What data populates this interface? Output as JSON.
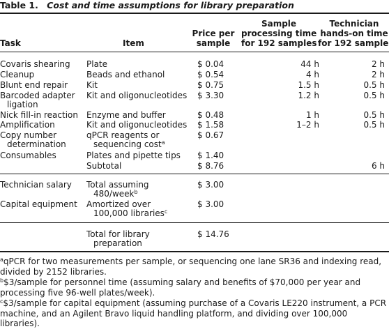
{
  "caption": {
    "label": "Table 1.",
    "text": "Cost and time assumptions for library preparation"
  },
  "headers": {
    "task": "Task",
    "item": "Item",
    "price": [
      "Price per",
      "sample"
    ],
    "processing": [
      "Sample",
      "processing time",
      "for 192 samples"
    ],
    "technician": [
      "Technician",
      "hands-on time",
      "for 192 samples"
    ]
  },
  "rows": [
    {
      "task": "Covaris shearing",
      "item": "Plate",
      "price": "$ 0.04",
      "processing": "44 h",
      "technician": "2 h"
    },
    {
      "task": "Cleanup",
      "item": "Beads and ethanol",
      "price": "$ 0.54",
      "processing": "4 h",
      "technician": "2 h"
    },
    {
      "task": "Blunt end repair",
      "item": "Kit",
      "price": "$ 0.75",
      "processing": "1.5 h",
      "technician": "0.5 h"
    },
    {
      "task": "Barcoded adapter",
      "task_cont": "ligation",
      "item": "Kit and oligonucleotides",
      "price": "$ 3.30",
      "processing": "1.2 h",
      "technician": "0.5 h"
    },
    {
      "task": "Nick fill-in reaction",
      "item": "Enzyme and buffer",
      "price": "$ 0.48",
      "processing": "1 h",
      "technician": "0.5 h"
    },
    {
      "task": "Amplification",
      "item": "Kit and oligonucleotides",
      "price": "$ 1.58",
      "processing": "1–2 h",
      "technician": "0.5 h"
    },
    {
      "task": "Copy number",
      "task_cont": "determination",
      "item": "qPCR reagents or",
      "item_cont": "sequencing cost",
      "item_sup": "a",
      "price": "$ 0.67"
    },
    {
      "task": "Consumables",
      "item": "Plates and pipette tips",
      "price": "$ 1.40"
    },
    {
      "item": "Subtotal",
      "price": "$ 8.76",
      "technician": "6 h"
    }
  ],
  "section2": [
    {
      "task": "Technician salary",
      "item": "Total assuming",
      "item_cont": "480/week",
      "item_sup": "b",
      "price": "$ 3.00"
    },
    {
      "task": "Capital equipment",
      "item": "Amortized over",
      "item_cont": "100,000 libraries",
      "item_sup": "c",
      "price": "$ 3.00"
    }
  ],
  "total": {
    "item": "Total for library",
    "item_cont": "preparation",
    "price": "$ 14.76"
  },
  "footnotes": [
    {
      "mark": "a",
      "text": "qPCR for two measurements per sample, or sequencing one lane SR36 and indexing read, divided by 2152 libraries."
    },
    {
      "mark": "b",
      "text": "$3/sample for personnel time (assuming salary and benefits of $70,000 per year and processing five 96-well plates/week)."
    },
    {
      "mark": "c",
      "text": "$3/sample for capital equipment (assuming purchase of a Covaris LE220 instrument, a PCR machine, and an Agilent Bravo liquid handling platform, and dividing over 100,000 libraries)."
    }
  ]
}
